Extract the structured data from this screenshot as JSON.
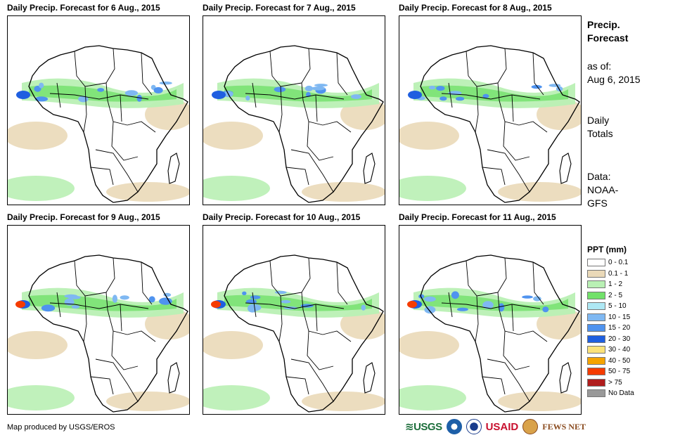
{
  "panels": [
    {
      "title": "Daily Precip. Forecast for 6 Aug., 2015"
    },
    {
      "title": "Daily Precip. Forecast for 7 Aug., 2015"
    },
    {
      "title": "Daily Precip. Forecast for 8 Aug., 2015"
    },
    {
      "title": "Daily Precip. Forecast for 9 Aug., 2015"
    },
    {
      "title": "Daily Precip. Forecast for 10 Aug., 2015"
    },
    {
      "title": "Daily Precip. Forecast for 11 Aug., 2015"
    }
  ],
  "side": {
    "title_1": "Precip.",
    "title_2": "Forecast",
    "asof_1": "as of:",
    "asof_2": "Aug 6, 2015",
    "daily_1": "Daily",
    "daily_2": "Totals",
    "data_1": "Data:",
    "data_2": "NOAA-",
    "data_3": "GFS"
  },
  "legend": {
    "title": "PPT (mm)",
    "items": [
      {
        "label": "0 - 0.1",
        "color": "#ffffff"
      },
      {
        "label": "0.1 - 1",
        "color": "#ead9b8"
      },
      {
        "label": "1 - 2",
        "color": "#b9f0b4"
      },
      {
        "label": "2 - 5",
        "color": "#72e16a"
      },
      {
        "label": "5 - 10",
        "color": "#aee8f4"
      },
      {
        "label": "10 - 15",
        "color": "#7fb8f2"
      },
      {
        "label": "15 - 20",
        "color": "#4f93ef"
      },
      {
        "label": "20 - 30",
        "color": "#1f5fe0"
      },
      {
        "label": "30 - 40",
        "color": "#fbe27a"
      },
      {
        "label": "40 - 50",
        "color": "#f5a400"
      },
      {
        "label": "50 - 75",
        "color": "#f53c00"
      },
      {
        "label": "> 75",
        "color": "#b01d1d"
      },
      {
        "label": "No Data",
        "color": "#999999"
      }
    ]
  },
  "footer": {
    "credit": "Map produced by USGS/EROS"
  },
  "logos": {
    "usgs": "USGS",
    "usaid": "USAID",
    "fews": "FEWS NET"
  }
}
